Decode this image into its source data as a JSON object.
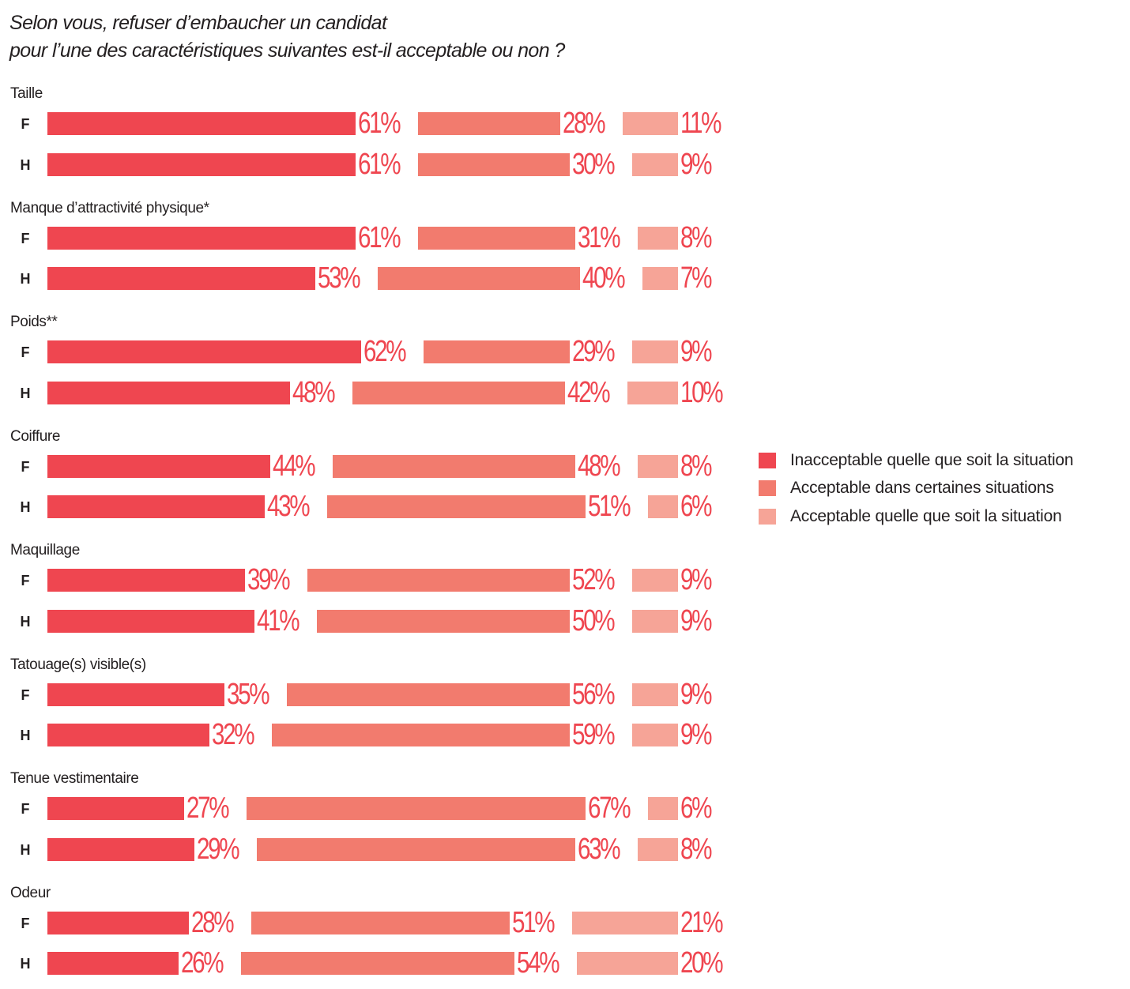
{
  "title": {
    "line1": "Selon vous, refuser d’embaucher un candidat",
    "line2": "pour l’une des caractéristiques suivantes est-il acceptable ou non ?"
  },
  "legend": [
    {
      "label": "Inacceptable quelle que soit la situation",
      "color": "#ef4650"
    },
    {
      "label": "Acceptable dans certaines situations",
      "color": "#f27b6e"
    },
    {
      "label": "Acceptable quelle que soit la situation",
      "color": "#f6a497"
    }
  ],
  "chart_data": {
    "type": "bar",
    "orientation": "horizontal-stacked",
    "title": "Selon vous, refuser d’embaucher un candidat pour l’une des caractéristiques suivantes est-il acceptable ou non ?",
    "unit": "%",
    "series_names": [
      "Inacceptable quelle que soit la situation",
      "Acceptable dans certaines situations",
      "Acceptable quelle que soit la situation"
    ],
    "legend_position": "right",
    "groups": [
      {
        "label": "Taille",
        "rows": [
          {
            "sex": "F",
            "values": [
              61,
              28,
              11
            ]
          },
          {
            "sex": "H",
            "values": [
              61,
              30,
              9
            ]
          }
        ]
      },
      {
        "label": "Manque d’attractivité physique*",
        "rows": [
          {
            "sex": "F",
            "values": [
              61,
              31,
              8
            ]
          },
          {
            "sex": "H",
            "values": [
              53,
              40,
              7
            ]
          }
        ]
      },
      {
        "label": "Poids**",
        "rows": [
          {
            "sex": "F",
            "values": [
              62,
              29,
              9
            ]
          },
          {
            "sex": "H",
            "values": [
              48,
              42,
              10
            ]
          }
        ]
      },
      {
        "label": "Coiffure",
        "rows": [
          {
            "sex": "F",
            "values": [
              44,
              48,
              8
            ]
          },
          {
            "sex": "H",
            "values": [
              43,
              51,
              6
            ]
          }
        ]
      },
      {
        "label": "Maquillage",
        "rows": [
          {
            "sex": "F",
            "values": [
              39,
              52,
              9
            ]
          },
          {
            "sex": "H",
            "values": [
              41,
              50,
              9
            ]
          }
        ]
      },
      {
        "label": "Tatouage(s) visible(s)",
        "rows": [
          {
            "sex": "F",
            "values": [
              35,
              56,
              9
            ]
          },
          {
            "sex": "H",
            "values": [
              32,
              59,
              9
            ]
          }
        ]
      },
      {
        "label": "Tenue vestimentaire",
        "rows": [
          {
            "sex": "F",
            "values": [
              27,
              67,
              6
            ]
          },
          {
            "sex": "H",
            "values": [
              29,
              63,
              8
            ]
          }
        ]
      },
      {
        "label": "Odeur",
        "rows": [
          {
            "sex": "F",
            "values": [
              28,
              51,
              21
            ]
          },
          {
            "sex": "H",
            "values": [
              26,
              54,
              20
            ]
          }
        ]
      }
    ]
  }
}
